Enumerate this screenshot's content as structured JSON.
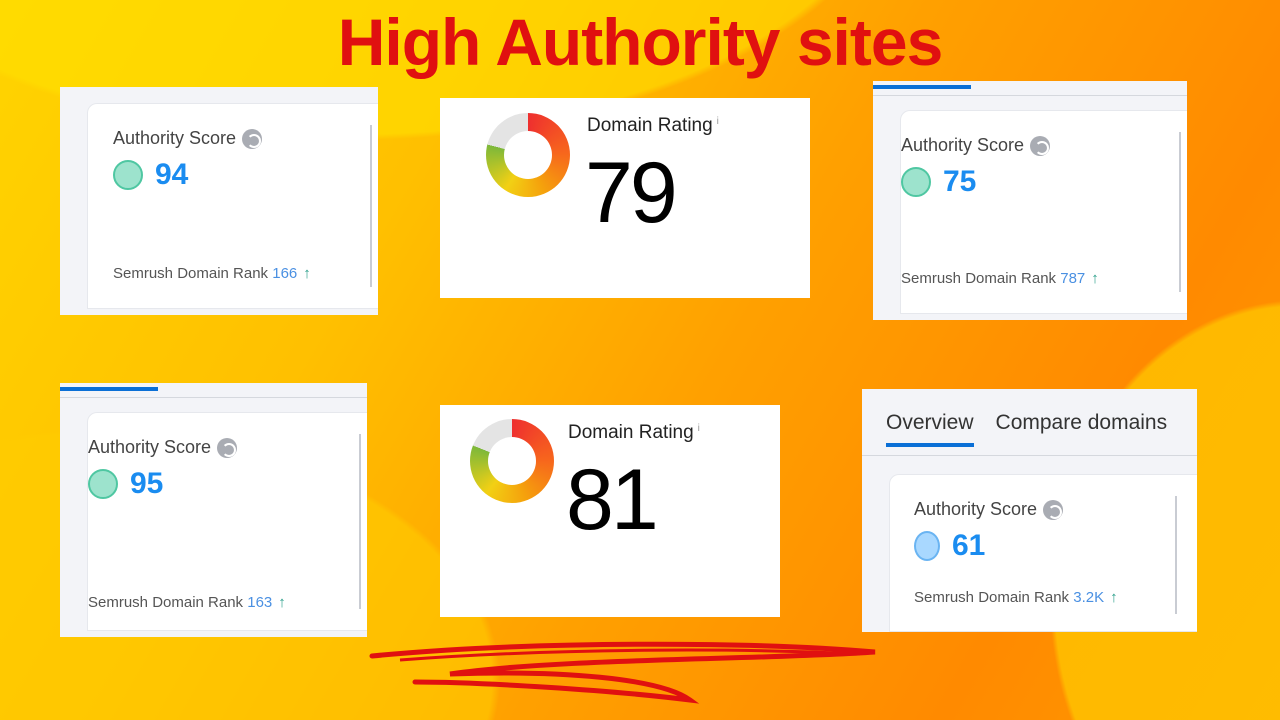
{
  "title": "High Authority sites",
  "semrush_cards": [
    {
      "label": "Authority Score",
      "score": "94",
      "rank_label": "Semrush Domain Rank",
      "rank": "166",
      "dot": "green"
    },
    {
      "label": "Authority Score",
      "score": "75",
      "rank_label": "Semrush Domain Rank",
      "rank": "787",
      "dot": "green"
    },
    {
      "label": "Authority Score",
      "score": "95",
      "rank_label": "Semrush Domain Rank",
      "rank": "163",
      "dot": "green"
    },
    {
      "label": "Authority Score",
      "score": "61",
      "rank_label": "Semrush Domain Rank",
      "rank": "3.2K",
      "dot": "blue",
      "tabs": [
        "Overview",
        "Compare domains"
      ]
    }
  ],
  "dr_cards": [
    {
      "label": "Domain Rating",
      "info": "i",
      "value": "79",
      "fill_percent": 79
    },
    {
      "label": "Domain Rating",
      "info": "i",
      "value": "81",
      "fill_percent": 81
    }
  ],
  "icons": {
    "score_info": "globe-icon",
    "rank_trend": "arrow-up-icon"
  },
  "colors": {
    "title": "#e01010",
    "score": "#1a8cf0",
    "tab_active": "#0a6fd6",
    "background": "#ffa000"
  }
}
